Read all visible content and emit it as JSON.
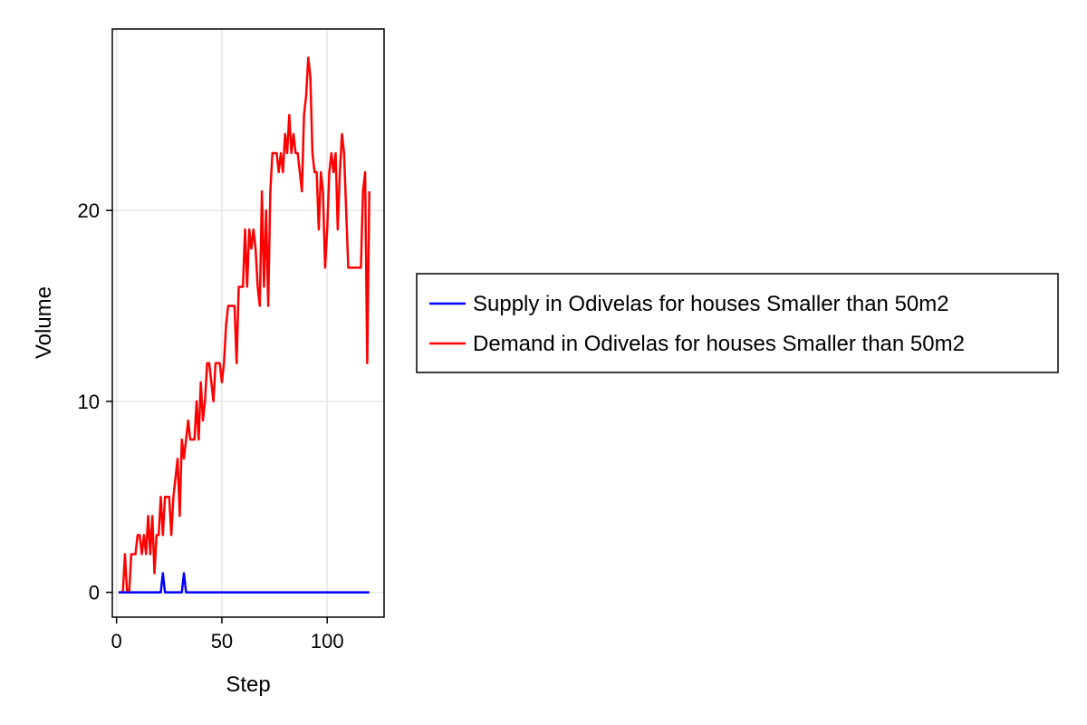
{
  "chart_data": {
    "type": "line",
    "xlabel": "Step",
    "ylabel": "Volume",
    "xlim": [
      -2,
      127
    ],
    "ylim": [
      -1.3,
      29.5
    ],
    "xticks": [
      0,
      50,
      100
    ],
    "yticks": [
      0,
      10,
      20
    ],
    "grid": true,
    "legend_position": "right",
    "series": [
      {
        "name": "Supply in Odivelas for houses Smaller than 50m2",
        "color": "#0000ff",
        "x": [
          1,
          2,
          3,
          4,
          5,
          6,
          7,
          8,
          9,
          10,
          11,
          12,
          13,
          14,
          15,
          16,
          17,
          18,
          19,
          20,
          21,
          22,
          23,
          24,
          25,
          26,
          27,
          28,
          29,
          30,
          31,
          32,
          33,
          34,
          35,
          36,
          37,
          38,
          39,
          40,
          41,
          42,
          43,
          44,
          45,
          46,
          47,
          48,
          49,
          50,
          51,
          52,
          53,
          54,
          55,
          56,
          57,
          58,
          59,
          60,
          61,
          62,
          63,
          64,
          65,
          66,
          67,
          68,
          69,
          70,
          71,
          72,
          73,
          74,
          75,
          76,
          77,
          78,
          79,
          80,
          81,
          82,
          83,
          84,
          85,
          86,
          87,
          88,
          89,
          90,
          91,
          92,
          93,
          94,
          95,
          96,
          97,
          98,
          99,
          100,
          101,
          102,
          103,
          104,
          105,
          106,
          107,
          108,
          109,
          110,
          111,
          112,
          113,
          114,
          115,
          116,
          117,
          118,
          119,
          120
        ],
        "y": [
          0,
          0,
          0,
          0,
          0,
          0,
          0,
          0,
          0,
          0,
          0,
          0,
          0,
          0,
          0,
          0,
          0,
          0,
          0,
          0,
          0,
          1,
          0,
          0,
          0,
          0,
          0,
          0,
          0,
          0,
          0,
          1,
          0,
          0,
          0,
          0,
          0,
          0,
          0,
          0,
          0,
          0,
          0,
          0,
          0,
          0,
          0,
          0,
          0,
          0,
          0,
          0,
          0,
          0,
          0,
          0,
          0,
          0,
          0,
          0,
          0,
          0,
          0,
          0,
          0,
          0,
          0,
          0,
          0,
          0,
          0,
          0,
          0,
          0,
          0,
          0,
          0,
          0,
          0,
          0,
          0,
          0,
          0,
          0,
          0,
          0,
          0,
          0,
          0,
          0,
          0,
          0,
          0,
          0,
          0,
          0,
          0,
          0,
          0,
          0,
          0,
          0,
          0,
          0,
          0,
          0,
          0,
          0,
          0,
          0,
          0,
          0,
          0,
          0,
          0,
          0,
          0,
          0,
          0,
          0
        ]
      },
      {
        "name": "Demand in Odivelas for houses Smaller than 50m2",
        "color": "#ff0000",
        "x": [
          1,
          2,
          3,
          4,
          5,
          6,
          7,
          8,
          9,
          10,
          11,
          12,
          13,
          14,
          15,
          16,
          17,
          18,
          19,
          20,
          21,
          22,
          23,
          24,
          25,
          26,
          27,
          28,
          29,
          30,
          31,
          32,
          33,
          34,
          35,
          36,
          37,
          38,
          39,
          40,
          41,
          42,
          43,
          44,
          45,
          46,
          47,
          48,
          49,
          50,
          51,
          52,
          53,
          54,
          55,
          56,
          57,
          58,
          59,
          60,
          61,
          62,
          63,
          64,
          65,
          66,
          67,
          68,
          69,
          70,
          71,
          72,
          73,
          74,
          75,
          76,
          77,
          78,
          79,
          80,
          81,
          82,
          83,
          84,
          85,
          86,
          87,
          88,
          89,
          90,
          91,
          92,
          93,
          94,
          95,
          96,
          97,
          98,
          99,
          100,
          101,
          102,
          103,
          104,
          105,
          106,
          107,
          108,
          109,
          110,
          111,
          112,
          113,
          114,
          115,
          116,
          117,
          118,
          119,
          120
        ],
        "y": [
          0,
          0,
          0,
          2,
          0,
          0,
          2,
          2,
          2,
          3,
          3,
          2,
          3,
          2,
          4,
          2,
          4,
          1,
          3,
          3,
          5,
          3,
          5,
          5,
          5,
          3,
          5,
          6,
          7,
          4,
          8,
          7,
          8,
          9,
          8,
          8,
          8,
          10,
          8,
          11,
          9,
          10,
          12,
          12,
          11,
          10,
          12,
          12,
          12,
          11,
          12,
          14,
          15,
          15,
          15,
          15,
          12,
          16,
          16,
          16,
          19,
          16,
          19,
          18,
          19,
          18,
          16,
          15,
          21,
          16,
          20,
          15,
          21,
          23,
          23,
          23,
          22,
          23,
          22,
          24,
          23,
          25,
          23,
          24,
          23,
          23,
          22,
          21,
          25,
          26,
          28,
          27,
          23,
          22,
          22,
          19,
          22,
          21,
          17,
          19,
          22,
          23,
          22,
          23,
          19,
          22,
          24,
          23,
          20,
          17,
          17,
          17,
          17,
          17,
          17,
          17,
          21,
          22,
          12,
          21
        ]
      }
    ]
  }
}
